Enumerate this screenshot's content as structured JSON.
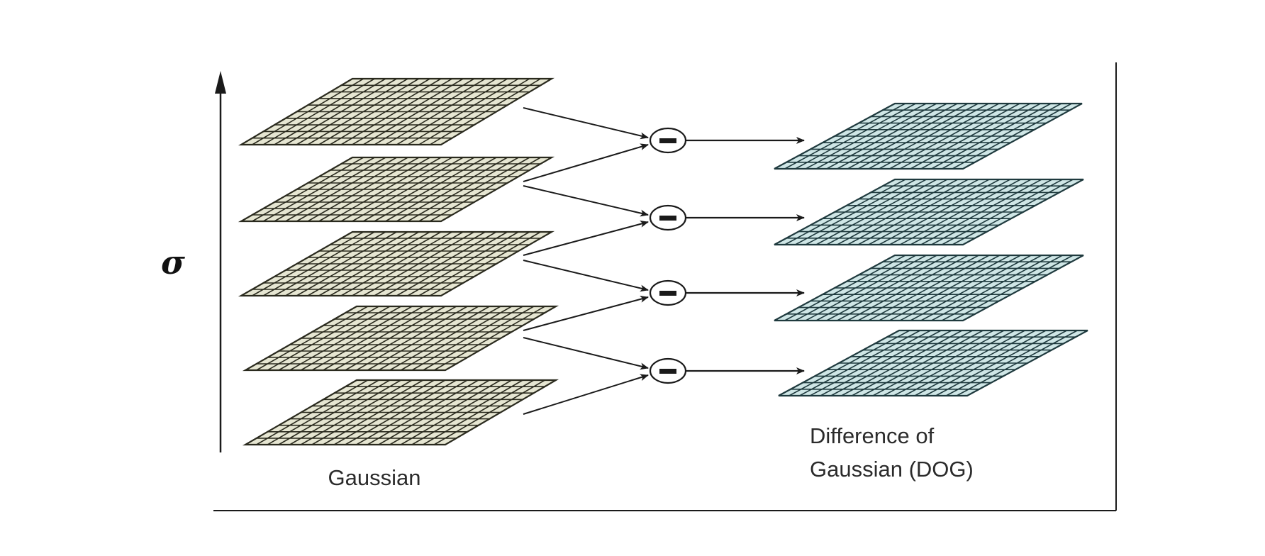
{
  "axis": {
    "symbol": "σ"
  },
  "labels": {
    "gaussian": "Gaussian",
    "dog_line1": "Difference of",
    "dog_line2": "Gaussian (DOG)"
  },
  "operator": {
    "symbol": "−"
  },
  "stacks": {
    "gaussian": {
      "count": 5,
      "fill": "#e6e6d2",
      "line": "#2a2a1e"
    },
    "dog": {
      "count": 4,
      "fill": "#cfe6e6",
      "line": "#1f3a3e"
    }
  },
  "colors": {
    "arrow": "#1a1a1a",
    "frame": "#1a1a1a",
    "background": "#ffffff"
  }
}
